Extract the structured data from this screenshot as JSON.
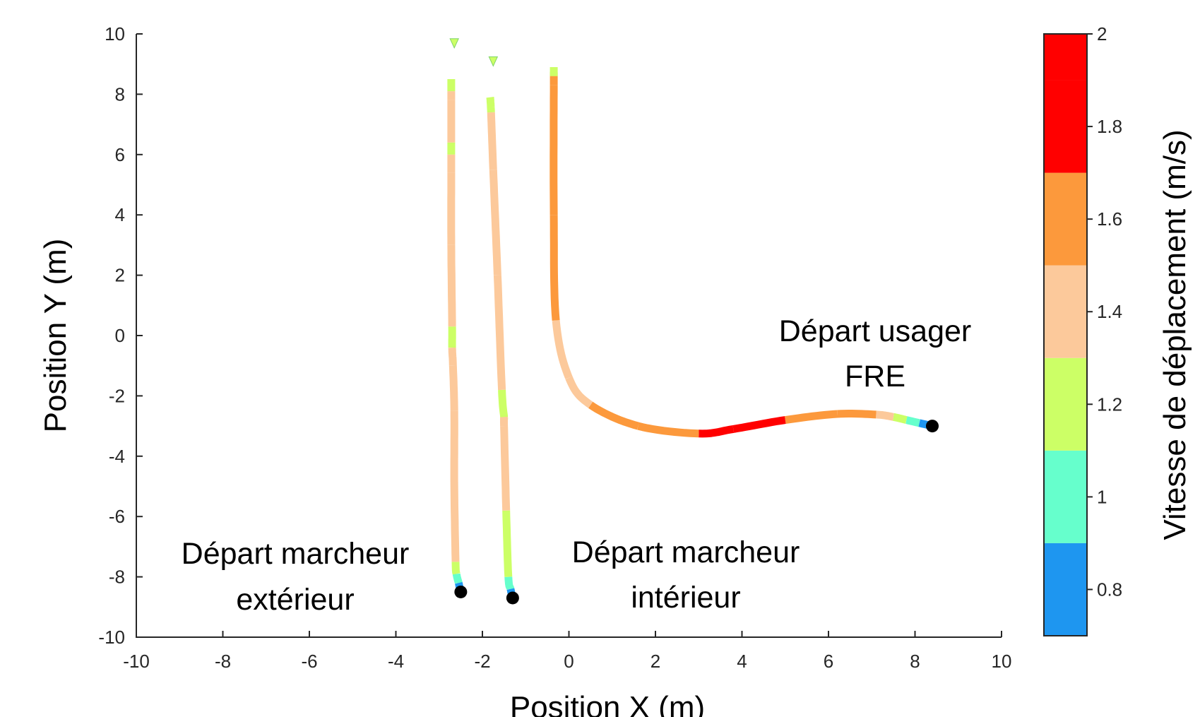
{
  "chart_data": {
    "type": "line",
    "title": "",
    "xlabel": "Position X (m)",
    "ylabel": "Position Y (m)",
    "xlim": [
      -10,
      10
    ],
    "ylim": [
      -10,
      10
    ],
    "x_ticks": [
      -10,
      -8,
      -6,
      -4,
      -2,
      0,
      2,
      4,
      6,
      8,
      10
    ],
    "y_ticks": [
      -10,
      -8,
      -6,
      -4,
      -2,
      0,
      2,
      4,
      6,
      8,
      10
    ],
    "x_tick_labels": [
      "-10",
      "-8",
      "-6",
      "-4",
      "-2",
      "0",
      "2",
      "4",
      "6",
      "8",
      "10"
    ],
    "y_tick_labels": [
      "-10",
      "-8",
      "-6",
      "-4",
      "-2",
      "0",
      "2",
      "4",
      "6",
      "8",
      "10"
    ],
    "grid": false,
    "colorbar": {
      "label": "Vitesse de déplacement (m/s)",
      "range": [
        0.7,
        2.0
      ],
      "tick_values": [
        0.8,
        1,
        1.2,
        1.4,
        1.6,
        1.8,
        2
      ],
      "tick_labels": [
        "0.8",
        "1",
        "1.2",
        "1.4",
        "1.6",
        "1.8",
        "2"
      ],
      "bands": [
        {
          "from": 0.7,
          "to": 0.9,
          "color": "#1e96f0"
        },
        {
          "from": 0.9,
          "to": 1.1,
          "color": "#66ffcc"
        },
        {
          "from": 1.1,
          "to": 1.3,
          "color": "#ccff66"
        },
        {
          "from": 1.3,
          "to": 1.5,
          "color": "#fcc99b"
        },
        {
          "from": 1.5,
          "to": 1.7,
          "color": "#fc993c"
        },
        {
          "from": 1.7,
          "to": 1.9,
          "color": "#ff0000"
        }
      ],
      "top_color": "#ff0000"
    },
    "trajectories": [
      {
        "points": [
          {
            "x": -2.5,
            "y": -8.5,
            "v": 0.8
          },
          {
            "x": -2.55,
            "y": -8.2,
            "v": 1.0
          },
          {
            "x": -2.6,
            "y": -7.9,
            "v": 1.2
          },
          {
            "x": -2.62,
            "y": -7.5,
            "v": 1.4
          },
          {
            "x": -2.65,
            "y": -5.0,
            "v": 1.4
          },
          {
            "x": -2.65,
            "y": -2.5,
            "v": 1.4
          },
          {
            "x": -2.68,
            "y": -1.0,
            "v": 1.4
          },
          {
            "x": -2.7,
            "y": -0.4,
            "v": 1.2
          },
          {
            "x": -2.7,
            "y": 0.3,
            "v": 1.4
          },
          {
            "x": -2.72,
            "y": 3.0,
            "v": 1.4
          },
          {
            "x": -2.72,
            "y": 5.4,
            "v": 1.4
          },
          {
            "x": -2.72,
            "y": 6.0,
            "v": 1.2
          },
          {
            "x": -2.72,
            "y": 6.4,
            "v": 1.4
          },
          {
            "x": -2.72,
            "y": 7.8,
            "v": 1.4
          },
          {
            "x": -2.72,
            "y": 8.1,
            "v": 1.2
          },
          {
            "x": -2.72,
            "y": 8.5,
            "v": 0.8
          }
        ],
        "start_dot": {
          "x": -2.5,
          "y": -8.5
        }
      },
      {
        "points": [
          {
            "x": -1.3,
            "y": -8.7,
            "v": 0.8
          },
          {
            "x": -1.35,
            "y": -8.4,
            "v": 1.0
          },
          {
            "x": -1.4,
            "y": -8.0,
            "v": 1.2
          },
          {
            "x": -1.45,
            "y": -5.8,
            "v": 1.4
          },
          {
            "x": -1.5,
            "y": -3.0,
            "v": 1.4
          },
          {
            "x": -1.5,
            "y": -2.7,
            "v": 1.2
          },
          {
            "x": -1.55,
            "y": -1.8,
            "v": 1.4
          },
          {
            "x": -1.65,
            "y": 2.0,
            "v": 1.4
          },
          {
            "x": -1.75,
            "y": 5.5,
            "v": 1.4
          },
          {
            "x": -1.8,
            "y": 7.4,
            "v": 1.2
          },
          {
            "x": -1.82,
            "y": 7.9,
            "v": 0.8
          }
        ],
        "start_dot": {
          "x": -1.3,
          "y": -8.7
        }
      },
      {
        "points": [
          {
            "x": 8.4,
            "y": -3.0,
            "v": 0.8
          },
          {
            "x": 8.1,
            "y": -2.9,
            "v": 1.0
          },
          {
            "x": 7.8,
            "y": -2.8,
            "v": 1.2
          },
          {
            "x": 7.5,
            "y": -2.7,
            "v": 1.4
          },
          {
            "x": 7.1,
            "y": -2.62,
            "v": 1.6
          },
          {
            "x": 6.2,
            "y": -2.6,
            "v": 1.6
          },
          {
            "x": 5.0,
            "y": -2.8,
            "v": 1.8
          },
          {
            "x": 3.8,
            "y": -3.1,
            "v": 1.8
          },
          {
            "x": 3.0,
            "y": -3.25,
            "v": 1.6
          },
          {
            "x": 1.6,
            "y": -3.0,
            "v": 1.6
          },
          {
            "x": 0.5,
            "y": -2.3,
            "v": 1.4
          },
          {
            "x": 0.0,
            "y": -1.4,
            "v": 1.4
          },
          {
            "x": -0.3,
            "y": 0.5,
            "v": 1.6
          },
          {
            "x": -0.35,
            "y": 4.0,
            "v": 1.6
          },
          {
            "x": -0.35,
            "y": 8.3,
            "v": 1.6
          },
          {
            "x": -0.35,
            "y": 8.6,
            "v": 1.2
          },
          {
            "x": -0.35,
            "y": 8.9,
            "v": 0.8
          }
        ],
        "start_dot": {
          "x": 8.4,
          "y": -3.0
        }
      }
    ],
    "end_markers": [
      {
        "x": -2.65,
        "y": 9.7,
        "v": 1.2
      },
      {
        "x": -1.75,
        "y": 9.1,
        "v": 1.2
      }
    ]
  },
  "annotations": {
    "user_start_line1": "Départ usager",
    "user_start_line2": "FRE",
    "outer_walker_line1": "Départ marcheur",
    "outer_walker_line2": "extérieur",
    "inner_walker_line1": "Départ marcheur",
    "inner_walker_line2": "intérieur"
  },
  "colors": {
    "axis": "#262626",
    "start_dot": "#000000"
  }
}
